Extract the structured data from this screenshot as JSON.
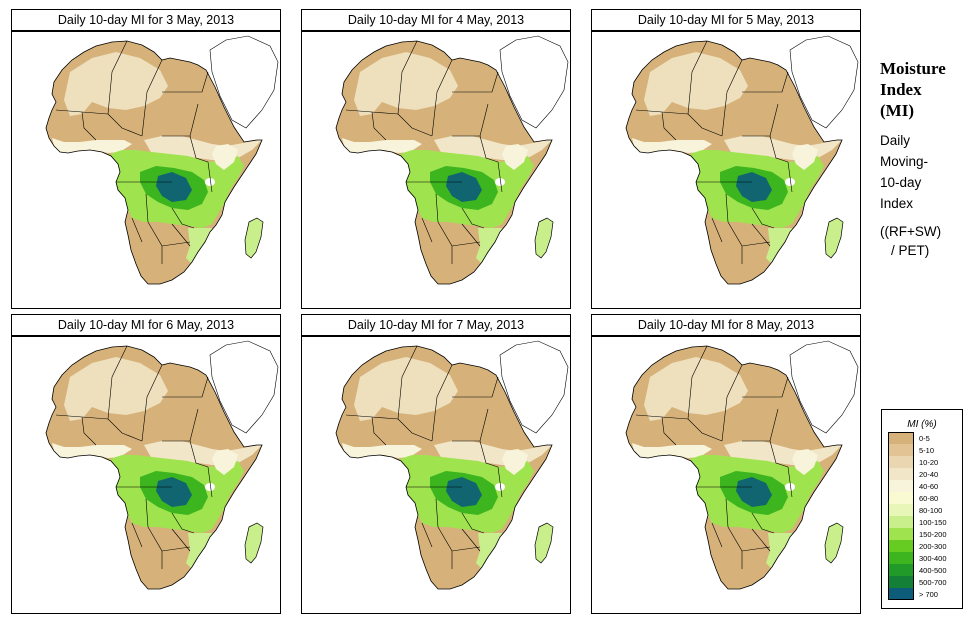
{
  "panels": [
    {
      "title": "Daily 10-day MI for  3 May, 2013"
    },
    {
      "title": "Daily 10-day MI for  4 May, 2013"
    },
    {
      "title": "Daily 10-day MI for  5 May, 2013"
    },
    {
      "title": "Daily 10-day MI for  6 May, 2013"
    },
    {
      "title": "Daily 10-day MI for  7 May, 2013"
    },
    {
      "title": "Daily 10-day MI for  8 May, 2013"
    }
  ],
  "side": {
    "title_lines": [
      "Moisture",
      "Index",
      "(MI)"
    ],
    "desc_lines": [
      "Daily",
      "Moving-",
      "10-day",
      "Index"
    ],
    "formula_lines": [
      "((RF+SW)",
      "/ PET)"
    ]
  },
  "legend": {
    "title": "MI (%)",
    "items": [
      {
        "label": "0-5",
        "color": "#d6b27a"
      },
      {
        "label": "5-10",
        "color": "#e1c394"
      },
      {
        "label": "10-20",
        "color": "#ead6b0"
      },
      {
        "label": "20-40",
        "color": "#f2e6c9"
      },
      {
        "label": "40-60",
        "color": "#f8f4dc"
      },
      {
        "label": "60-80",
        "color": "#fafad2"
      },
      {
        "label": "80-100",
        "color": "#e8f7b8"
      },
      {
        "label": "100-150",
        "color": "#c9ef8c"
      },
      {
        "label": "150-200",
        "color": "#9fe34f"
      },
      {
        "label": "200-300",
        "color": "#66cc22"
      },
      {
        "label": "300-400",
        "color": "#3cb51e"
      },
      {
        "label": "400-500",
        "color": "#219a29"
      },
      {
        "label": "500-700",
        "color": "#137f37"
      },
      {
        "label": "> 700",
        "color": "#0c5c7a"
      }
    ]
  }
}
